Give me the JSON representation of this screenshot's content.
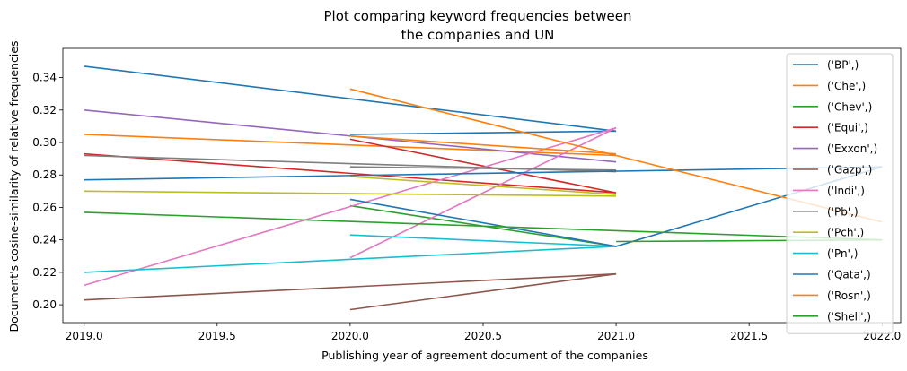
{
  "chart_data": {
    "type": "line",
    "title_lines": [
      "Plot comparing keyword frequencies between",
      "the companies and UN"
    ],
    "xlabel": "Publishing year of agreement document of the companies",
    "ylabel": "Document's cosine-similarity of relative frequencies",
    "xlim": [
      2018.92,
      2022.07
    ],
    "ylim": [
      0.189,
      0.358
    ],
    "xticks": [
      2019.0,
      2019.5,
      2020.0,
      2020.5,
      2021.0,
      2021.5,
      2022.0
    ],
    "xtick_labels": [
      "2019.0",
      "2019.5",
      "2020.0",
      "2020.5",
      "2021.0",
      "2021.5",
      "2022.0"
    ],
    "yticks": [
      0.2,
      0.22,
      0.24,
      0.26,
      0.28,
      0.3,
      0.32,
      0.34
    ],
    "ytick_labels": [
      "0.20",
      "0.22",
      "0.24",
      "0.26",
      "0.28",
      "0.30",
      "0.32",
      "0.34"
    ],
    "legend_position": "right",
    "grid": false,
    "series": [
      {
        "name": "('BP',)",
        "color": "#1f77b4",
        "x": [
          2019,
          2021
        ],
        "y": [
          0.347,
          0.307
        ],
        "x2": [
          2020,
          2021
        ],
        "y2": [
          0.305,
          0.307
        ]
      },
      {
        "name": "('Che',)",
        "color": "#ff7f0e",
        "x": [
          2019,
          2021
        ],
        "y": [
          0.305,
          0.292
        ]
      },
      {
        "name": "('Chev',)",
        "color": "#2ca02c",
        "x": [
          2020,
          2021
        ],
        "y": [
          0.261,
          0.236
        ]
      },
      {
        "name": "('Equi',)",
        "color": "#d62728",
        "x": [
          2019,
          2021,
          2020
        ],
        "y": [
          0.293,
          0.269,
          0.302
        ]
      },
      {
        "name": "('Exxon',)",
        "color": "#9467bd",
        "x": [
          2019,
          2021
        ],
        "y": [
          0.32,
          0.288
        ]
      },
      {
        "name": "('Gazp',)",
        "color": "#8c564b",
        "x": [
          2019,
          2021
        ],
        "y": [
          0.203,
          0.219
        ],
        "x2": [
          2020,
          2021
        ],
        "y2": [
          0.197,
          0.219
        ]
      },
      {
        "name": "('Indi',)",
        "color": "#e377c2",
        "x": [
          2019,
          2021
        ],
        "y": [
          0.212,
          0.309
        ],
        "x2": [
          2020,
          2021
        ],
        "y2": [
          0.229,
          0.309
        ]
      },
      {
        "name": "('Pb',)",
        "color": "#7f7f7f",
        "x": [
          2019,
          2021
        ],
        "y": [
          0.292,
          0.282
        ],
        "x2": [
          2020,
          2021
        ],
        "y2": [
          0.285,
          0.283
        ]
      },
      {
        "name": "('Pch',)",
        "color": "#bcbd22",
        "x": [
          2019,
          2021
        ],
        "y": [
          0.27,
          0.267
        ],
        "x2": [
          2020,
          2021
        ],
        "y2": [
          0.279,
          0.268
        ]
      },
      {
        "name": "('Pn',)",
        "color": "#17becf",
        "x": [
          2019,
          2021
        ],
        "y": [
          0.22,
          0.236
        ],
        "x2": [
          2020,
          2021
        ],
        "y2": [
          0.243,
          0.236
        ]
      },
      {
        "name": "('Qata',)",
        "color": "#1f77b4",
        "x": [
          2019,
          2022
        ],
        "y": [
          0.277,
          0.285
        ],
        "x2": [
          2020,
          2021,
          2022
        ],
        "y2": [
          0.265,
          0.236,
          0.285
        ]
      },
      {
        "name": "('Rosn',)",
        "color": "#ff7f0e",
        "x": [
          2020,
          2022
        ],
        "y": [
          0.333,
          0.251
        ],
        "x2": [
          2020,
          2021
        ],
        "y2": [
          0.304,
          0.293
        ]
      },
      {
        "name": "('Shell',)",
        "color": "#2ca02c",
        "x": [
          2019,
          2022
        ],
        "y": [
          0.257,
          0.24
        ],
        "x2": [
          2021,
          2022
        ],
        "y2": [
          0.239,
          0.24
        ]
      }
    ]
  }
}
